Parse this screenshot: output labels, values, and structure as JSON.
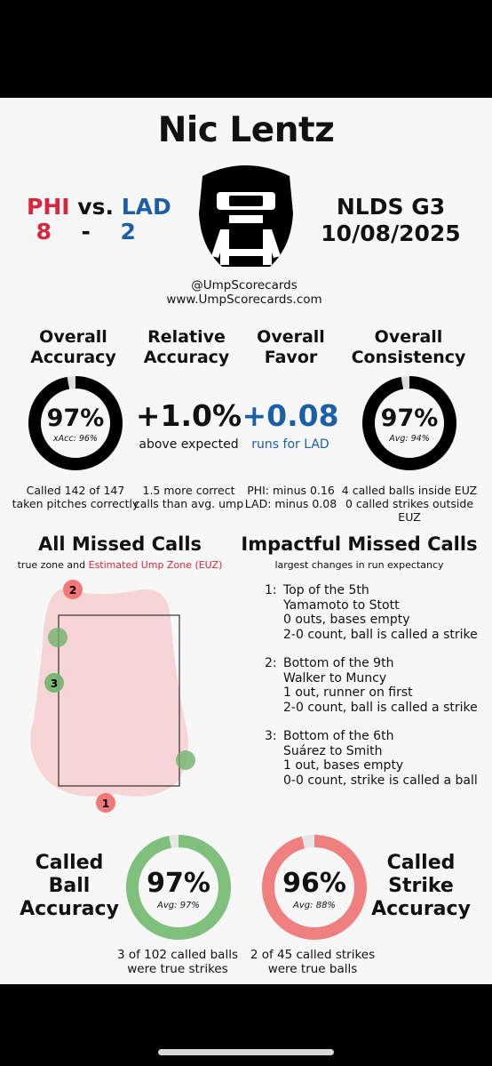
{
  "umpire": "Nic Lentz",
  "game": {
    "away_team": "PHI",
    "vs": "vs.",
    "home_team": "LAD",
    "away_score": "8",
    "dash": "-",
    "home_score": "2",
    "series": "NLDS  G3",
    "date": "10/08/2025"
  },
  "credits": {
    "handle": "@UmpScorecards",
    "site": "www.UmpScorecards.com"
  },
  "stats": {
    "overall_accuracy": {
      "head1": "Overall",
      "head2": "Accuracy",
      "value": "97%",
      "sub": "xAcc: 96%",
      "fraction": 0.97,
      "footer1": "Called 142 of 147",
      "footer2": "taken pitches correctly"
    },
    "relative_accuracy": {
      "head1": "Relative",
      "head2": "Accuracy",
      "value": "+1.0%",
      "sub": "above expected",
      "footer1": "1.5 more correct",
      "footer2": "calls than avg. ump"
    },
    "overall_favor": {
      "head1": "Overall",
      "head2": "Favor",
      "value": "+0.08",
      "sub": "runs for LAD",
      "footer1": "PHI: minus 0.16",
      "footer2": "LAD: minus 0.08"
    },
    "overall_consistency": {
      "head1": "Overall",
      "head2": "Consistency",
      "value": "97%",
      "sub": "Avg: 94%",
      "fraction": 0.97,
      "footer1": "4 called balls inside EUZ",
      "footer2": "0 called strikes outside EUZ"
    }
  },
  "all_missed": {
    "title": "All Missed Calls",
    "subtitle_prefix": "true zone and ",
    "subtitle_highlight": "Estimated Ump Zone (EUZ)",
    "markers": [
      {
        "label": "2",
        "type": "strike-called-ball"
      },
      {
        "label": "",
        "type": "ball-called-strike"
      },
      {
        "label": "3",
        "type": "ball-called-strike"
      },
      {
        "label": "",
        "type": "ball-called-strike"
      },
      {
        "label": "1",
        "type": "strike-called-ball"
      }
    ]
  },
  "impactful": {
    "title": "Impactful Missed Calls",
    "subtitle": "largest changes in run expectancy",
    "items": [
      {
        "num": "1:",
        "lines": [
          "Top of the 5th",
          "Yamamoto to Stott",
          "0 outs, bases empty",
          "2-0 count, ball is called a strike"
        ]
      },
      {
        "num": "2:",
        "lines": [
          "Bottom of the 9th",
          "Walker to Muncy",
          "1 out, runner on first",
          "2-0 count, ball is called a strike"
        ]
      },
      {
        "num": "3:",
        "lines": [
          "Bottom of the 6th",
          "Suárez to Smith",
          "1 out, bases empty",
          "0-0 count, strike is called a ball"
        ]
      }
    ]
  },
  "called_ball": {
    "l1": "Called",
    "l2": "Ball",
    "l3": "Accuracy",
    "value": "97%",
    "sub": "Avg: 97%",
    "fraction": 0.97,
    "footer1": "3 of 102 called balls",
    "footer2": "were true strikes"
  },
  "called_strike": {
    "l1": "Called",
    "l2": "Strike",
    "l3": "Accuracy",
    "value": "96%",
    "sub": "Avg: 88%",
    "fraction": 0.96,
    "footer1": "2 of 45 called strikes",
    "footer2": "were true balls"
  },
  "colors": {
    "red": "#d7263d",
    "blue": "#1b5fa6",
    "ring_dark": "#000000",
    "ring_green": "#7fc07c",
    "ring_red": "#f07f7f",
    "euz": "#f6cfd0",
    "miss_red": "#ef6a6a",
    "miss_green": "#6fb26a"
  }
}
